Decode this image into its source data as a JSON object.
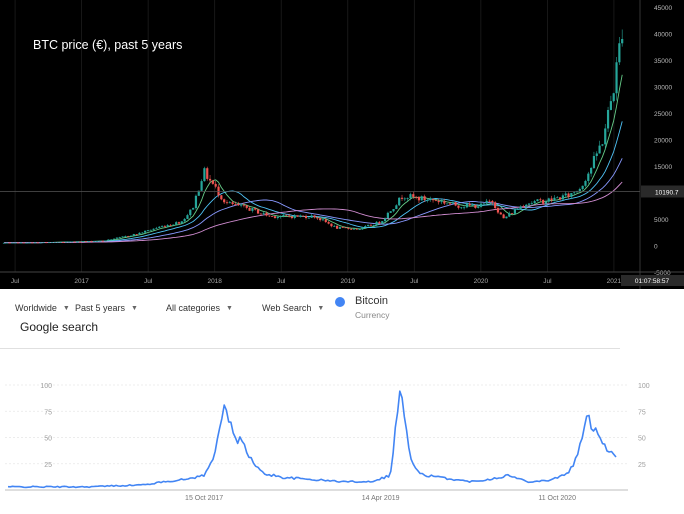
{
  "top_panel": {
    "title": "BTC price (€), past 5 years",
    "price_label": "10190.7",
    "time_label": "01:07:58:57",
    "y_ticks": [
      "45000",
      "40000",
      "35000",
      "30000",
      "25000",
      "20000",
      "15000",
      "10000",
      "5000",
      "0",
      "-5000"
    ],
    "x_ticks": [
      "Jul",
      "2017",
      "Jul",
      "2018",
      "Jul",
      "2019",
      "Jul",
      "2020",
      "Jul",
      "2021"
    ]
  },
  "bottom_panel": {
    "controls": {
      "region": "Worldwide",
      "period": "Past 5 years",
      "category": "All categories",
      "search_type": "Web Search"
    },
    "legend": {
      "term": "Bitcoin",
      "subtitle": "Currency",
      "color": "#4285f4"
    },
    "title": "Google search",
    "y_ticks": [
      "100",
      "75",
      "50",
      "25"
    ],
    "x_ticks": [
      "15 Oct 2017",
      "14 Apr 2019",
      "11 Oct 2020"
    ]
  },
  "chart_data": [
    {
      "type": "line",
      "title": "BTC price (€), past 5 years",
      "xlabel": "",
      "ylabel": "",
      "ylim": [
        -5000,
        45000
      ],
      "grid": false,
      "series": [
        {
          "x": [
            "2016-06",
            "2016-09",
            "2016-12",
            "2017-03",
            "2017-06",
            "2017-08",
            "2017-10",
            "2017-11",
            "2017-12",
            "2018-01",
            "2018-02",
            "2018-04",
            "2018-06",
            "2018-08",
            "2018-10",
            "2018-12",
            "2019-02",
            "2019-04",
            "2019-06",
            "2019-07",
            "2019-09",
            "2019-11",
            "2020-01",
            "2020-02",
            "2020-03",
            "2020-05",
            "2020-07",
            "2020-09",
            "2020-10",
            "2020-11",
            "2020-12",
            "2021-01",
            "2021-02"
          ],
          "values": [
            500,
            550,
            700,
            900,
            2200,
            3500,
            4500,
            7000,
            14000,
            11000,
            8000,
            7000,
            5500,
            5500,
            5500,
            3300,
            3100,
            4500,
            9500,
            9000,
            8500,
            7500,
            7500,
            8500,
            5000,
            8000,
            8500,
            9500,
            11000,
            15000,
            20000,
            30000,
            45000
          ]
        }
      ]
    },
    {
      "type": "line",
      "title": "",
      "xlabel": "",
      "ylabel": "",
      "ylim": [
        0,
        100
      ],
      "grid": true,
      "series": [
        {
          "name": "Bitcoin",
          "x": [
            "2016-02",
            "2016-06",
            "2016-10",
            "2017-01",
            "2017-04",
            "2017-06",
            "2017-08",
            "2017-10",
            "2017-11",
            "2017-12",
            "2018-01",
            "2018-02",
            "2018-03",
            "2018-04",
            "2018-06",
            "2018-09",
            "2018-12",
            "2019-03",
            "2019-05",
            "2019-06",
            "2019-07",
            "2019-08",
            "2019-10",
            "2020-01",
            "2020-03",
            "2020-05",
            "2020-07",
            "2020-09",
            "2020-11",
            "2020-12",
            "2021-01",
            "2021-02",
            "2021-03",
            "2021-04"
          ],
          "values": [
            3,
            3,
            3,
            4,
            5,
            8,
            10,
            14,
            30,
            85,
            50,
            45,
            25,
            16,
            12,
            10,
            8,
            8,
            14,
            100,
            30,
            15,
            12,
            8,
            10,
            14,
            8,
            9,
            15,
            30,
            68,
            58,
            40,
            33
          ]
        }
      ]
    }
  ]
}
